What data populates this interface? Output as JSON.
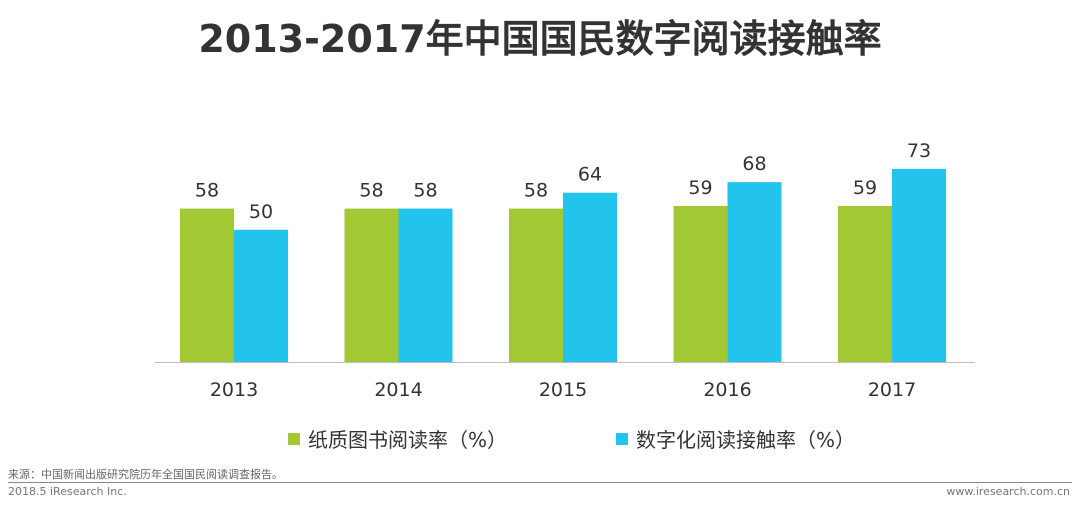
{
  "title": "2013-2017年中国国民数字阅读接触率",
  "colors": {
    "paper": "#a2c933",
    "digital": "#22c3ed",
    "axis": "#bfbfbf",
    "text": "#333333"
  },
  "chart_data": {
    "type": "bar",
    "title": "2013-2017年中国国民数字阅读接触率",
    "categories": [
      "2013",
      "2014",
      "2015",
      "2016",
      "2017"
    ],
    "series": [
      {
        "name": "纸质图书阅读率（%）",
        "values": [
          58,
          58,
          58,
          59,
          59
        ]
      },
      {
        "name": "数字化阅读接触率（%）",
        "values": [
          50,
          58,
          64,
          68,
          73
        ]
      }
    ],
    "ylim": [
      0,
      80
    ],
    "grid": false,
    "legend": "bottom"
  },
  "legend": {
    "paper_label": "纸质图书阅读率（%）",
    "digital_label": "数字化阅读接触率（%）"
  },
  "source": "来源：中国新闻出版研究院历年全国国民阅读调查报告。",
  "footer": {
    "left": "2018.5 iResearch Inc.",
    "right": "www.iresearch.com.cn"
  }
}
